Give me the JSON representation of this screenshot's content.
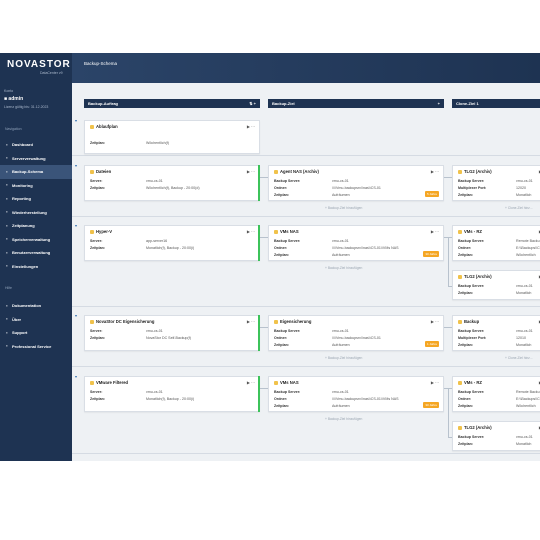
{
  "app": {
    "logo": "NOVASTOR",
    "logo_sub": "DataCenter v9",
    "page_title": "Backup-Schema"
  },
  "user": {
    "label": "Konto",
    "name": "admin",
    "license": "Lizenz gültig bis: 31.12.2023"
  },
  "nav": {
    "section1": "Navigation",
    "items": [
      {
        "label": "Dashboard",
        "icon": "dashboard-icon"
      },
      {
        "label": "Serververwaltung",
        "icon": "server-icon"
      },
      {
        "label": "Backup-Schema",
        "icon": "schema-icon"
      },
      {
        "label": "Monitoring",
        "icon": "monitor-icon"
      },
      {
        "label": "Reporting",
        "icon": "report-icon"
      },
      {
        "label": "Wiederherstellung",
        "icon": "restore-icon"
      },
      {
        "label": "Zeitplanung",
        "icon": "calendar-icon"
      },
      {
        "label": "Speicherverwaltung",
        "icon": "storage-icon"
      },
      {
        "label": "Benutzerverwaltung",
        "icon": "users-icon"
      },
      {
        "label": "Einstellungen",
        "icon": "gear-icon"
      }
    ],
    "section2": "Hilfe",
    "help": [
      {
        "label": "Dokumentation",
        "icon": "book-icon"
      },
      {
        "label": "Über",
        "icon": "info-icon"
      },
      {
        "label": "Support",
        "icon": "support-icon"
      },
      {
        "label": "Professional Service",
        "icon": "service-icon"
      }
    ]
  },
  "columns": {
    "c1": "Backup-Auftrag",
    "c1_ctrl": "⇅ +",
    "c2": "Backup-Ziel",
    "c2_ctrl": "+",
    "c3": "Clone-Ziel 1"
  },
  "labels": {
    "server": "Server:",
    "zeitplan": "Zeitplan:",
    "backup_server": "Backup Server:",
    "ordner": "Ordner:",
    "multiplexer": "Multiplexer Port:",
    "add_target": "+ Backup-Ziel hinzufügen",
    "add_clone": "+ Clone-Ziel hinz...",
    "ctrl": "▶ ···"
  },
  "rows": [
    {
      "job": {
        "title": "Ablaufplan",
        "zeitplan": "Wöchentlich(f)"
      }
    },
    {
      "job": {
        "title": "Dateien",
        "server": "vmu-cs-01",
        "zeitplan": "Wöchentlich(f), Backup - 20:00(d)"
      },
      "target": {
        "title": "Agent NAS (Archiv)",
        "backup_server": "vmu-cs-01",
        "ordner": "\\\\\\\\Vmu-backupsrv\\\\nas\\\\CS-01",
        "zeitplan": "Aufräumen",
        "badge": "5 Jahre"
      },
      "clone": {
        "title": "TLG2 (Archiv)",
        "backup_server": "vmu-cs-01",
        "multiplexer": "12020",
        "zeitplan": "Monatlich"
      }
    },
    {
      "job": {
        "title": "Hyper-V",
        "server": "app-server16",
        "zeitplan": "Monatlich(f), Backup - 20:00(i)"
      },
      "target": {
        "title": "VMs NAS",
        "backup_server": "vmu-cs-01",
        "ordner": "\\\\\\\\Vmu-backupsrv\\\\nas\\\\CS-01\\\\VMs NAS",
        "zeitplan": "Aufräumen",
        "badge": "30 Jahre"
      },
      "clone": {
        "title": "VMs - RZ",
        "backup_server": "Remote Backu",
        "ordner": "E:\\\\Backups\\\\CS",
        "zeitplan": "Wöchentlich"
      },
      "clone2": {
        "title": "TLG2 (Archiv)",
        "backup_server": "vmu-cs-01",
        "zeitplan": "Monatlich"
      }
    },
    {
      "job": {
        "title": "NovaStor DC Eigensicherung",
        "server": "vmu-cs-01",
        "zeitplan": "NovaStor DC Self-Backup(f)"
      },
      "target": {
        "title": "Eigensicherung",
        "backup_server": "vmu-cs-01",
        "ordner": "\\\\\\\\Vmu-backupsrv\\\\nas\\\\CS-01",
        "zeitplan": "Aufräumen",
        "badge": "1 Jahre"
      },
      "clone": {
        "title": "Backup",
        "backup_server": "vmu-cs-01",
        "multiplexer": "12010",
        "zeitplan": "Monatlich"
      }
    },
    {
      "job": {
        "title": "VMware Filtered",
        "server": "vmu-cs-01",
        "zeitplan": "Monatlich(f), Backup - 20:00(i)"
      },
      "target": {
        "title": "VMs NAS",
        "backup_server": "vmu-cs-01",
        "ordner": "\\\\\\\\Vmu-backupsrv\\\\nas\\\\CS-01\\\\VMs NAS",
        "zeitplan": "Aufräumen",
        "badge": "30 Jahre"
      },
      "clone": {
        "title": "VMs - RZ",
        "backup_server": "Remote Backu",
        "ordner": "E:\\\\Backups\\\\CS",
        "zeitplan": "Wöchentlich"
      },
      "clone2": {
        "title": "TLG2 (Archiv)",
        "backup_server": "vmu-cs-01",
        "zeitplan": "Monatlich"
      }
    }
  ],
  "colors": {
    "sidebar": "#1e3352",
    "active": "#3a5479",
    "ok": "#3cc35a",
    "badge": "#f5a623"
  }
}
